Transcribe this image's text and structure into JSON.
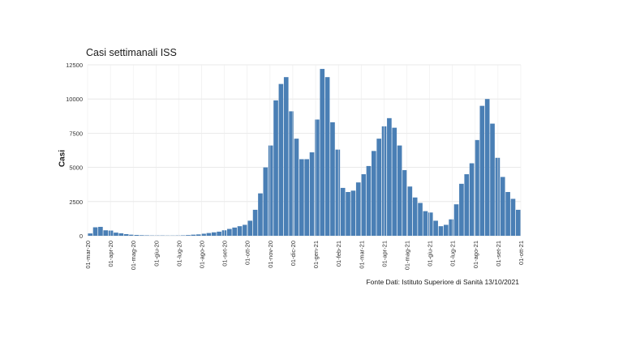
{
  "chart_data": {
    "type": "bar",
    "title": "Casi settimanali ISS",
    "ylabel": "Casi",
    "xlabel": "",
    "ylim": [
      0,
      12500
    ],
    "y_ticks": [
      "0",
      "2500",
      "5000",
      "7500",
      "10000",
      "12500"
    ],
    "x_tick_labels": [
      "01-mar-20",
      "01-apr-20",
      "01-mag-20",
      "01-giu-20",
      "01-lug-20",
      "01-ago-20",
      "01-set-20",
      "01-ott-20",
      "01-nov-20",
      "01-dic-20",
      "01-gen-21",
      "01-feb-21",
      "01-mar-21",
      "01-apr-21",
      "01-mag-21",
      "01-giu-21",
      "01-lug-21",
      "01-ago-21",
      "01-set-21",
      "01-ott-21"
    ],
    "grid": true,
    "bar_color": "#4a7fb5",
    "values": [
      170,
      620,
      650,
      400,
      380,
      230,
      180,
      120,
      80,
      60,
      40,
      30,
      20,
      20,
      20,
      15,
      15,
      20,
      30,
      50,
      80,
      100,
      150,
      200,
      250,
      300,
      400,
      500,
      600,
      700,
      800,
      1100,
      1900,
      3100,
      5000,
      6600,
      9900,
      11100,
      11600,
      9100,
      7100,
      5600,
      5600,
      6100,
      8500,
      12200,
      11600,
      8300,
      6300,
      3500,
      3200,
      3300,
      3900,
      4500,
      5100,
      6200,
      7100,
      8000,
      8600,
      7900,
      6600,
      4800,
      3600,
      2800,
      2400,
      1800,
      1700,
      1100,
      700,
      800,
      1200,
      2300,
      3800,
      4500,
      5300,
      7000,
      9500,
      10000,
      8200,
      5700,
      4300,
      3200,
      2700,
      1900
    ]
  },
  "source": "Fonte Dati: Istituto Superiore di Sanità 13/10/2021"
}
